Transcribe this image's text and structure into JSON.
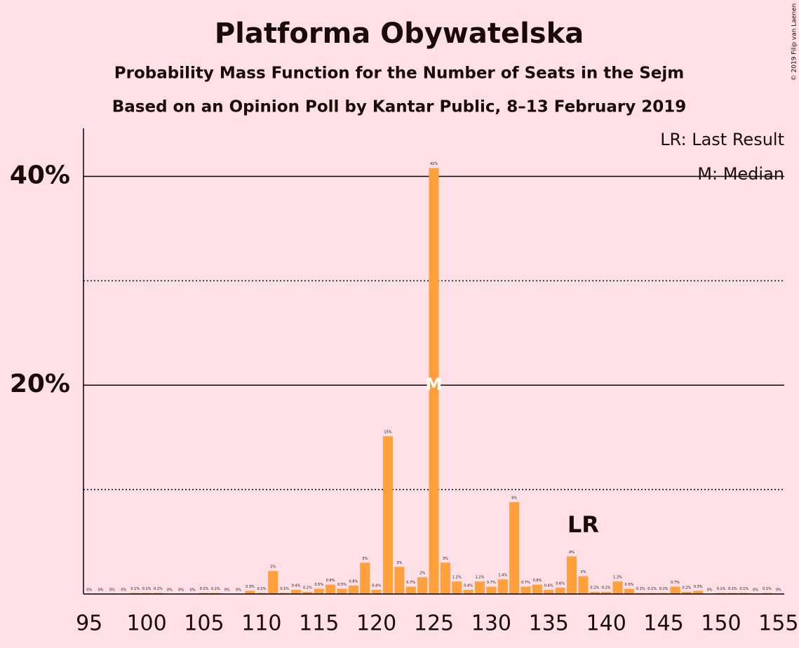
{
  "chart_data": {
    "type": "bar",
    "title": "Platforma Obywatelska",
    "subtitle": "Probability Mass Function for the Number of Seats in the Sejm",
    "subtitle2": "Based on an Opinion Poll by Kantar Public, 8–13 February 2019",
    "copyright": "© 2019 Filip van Laenen",
    "color": "#ffa03d",
    "x": [
      95,
      96,
      97,
      98,
      99,
      100,
      101,
      102,
      103,
      104,
      105,
      106,
      107,
      108,
      109,
      110,
      111,
      112,
      113,
      114,
      115,
      116,
      117,
      118,
      119,
      120,
      121,
      122,
      123,
      124,
      125,
      126,
      127,
      128,
      129,
      130,
      131,
      132,
      133,
      134,
      135,
      136,
      137,
      138,
      139,
      140,
      141,
      142,
      143,
      144,
      145,
      146,
      147,
      148,
      149,
      150,
      151,
      152,
      153,
      154,
      155
    ],
    "values": [
      0,
      0,
      0,
      0,
      0.1,
      0.1,
      0.1,
      0,
      0,
      0,
      0.1,
      0.1,
      0,
      0,
      0.3,
      0.1,
      2.2,
      0.1,
      0.4,
      0.2,
      0.5,
      0.9,
      0.5,
      0.8,
      3.0,
      0.4,
      15.1,
      2.6,
      0.7,
      1.6,
      40.8,
      3.0,
      1.2,
      0.4,
      1.2,
      0.7,
      1.4,
      8.8,
      0.7,
      0.9,
      0.4,
      0.6,
      3.6,
      1.7,
      0.2,
      0.2,
      1.2,
      0.5,
      0.1,
      0.1,
      0.1,
      0.7,
      0.2,
      0.3,
      0,
      0.1,
      0.1,
      0.1,
      0,
      0.1,
      0
    ],
    "value_labels": [
      "0%",
      "0%",
      "0%",
      "0%",
      "0.1%",
      "0.1%",
      "0.1%",
      "0%",
      "0%",
      "0%",
      "0.1%",
      "0.1%",
      "0%",
      "0%",
      "0.3%",
      "0.1%",
      "2%",
      "0.1%",
      "0.4%",
      "0.2%",
      "0.5%",
      "0.9%",
      "0.5%",
      "0.8%",
      "3%",
      "0.4%",
      "15%",
      "3%",
      "0.7%",
      "2%",
      "41%",
      "3%",
      "1.2%",
      "0.4%",
      "1.2%",
      "0.7%",
      "1.4%",
      "9%",
      "0.7%",
      "0.9%",
      "0.4%",
      "0.6%",
      "4%",
      "2%",
      "0.2%",
      "0.2%",
      "1.2%",
      "0.5%",
      "0.1%",
      "0.1%",
      "0.1%",
      "0.7%",
      "0.2%",
      "0.3%",
      "0%",
      "0.1%",
      "0.1%",
      "0.1%",
      "0%",
      "0.1%",
      "0%"
    ],
    "xlim": [
      94.5,
      155.5
    ],
    "xticks": [
      95,
      100,
      105,
      110,
      115,
      120,
      125,
      130,
      135,
      140,
      145,
      150,
      155
    ],
    "ylim": [
      0,
      44.6
    ],
    "yticks": [
      {
        "value": 20,
        "label": "20%"
      },
      {
        "value": 40,
        "label": "40%"
      }
    ],
    "minor_gridlines": [
      10,
      30
    ],
    "last_result": {
      "x": 138,
      "label": "LR"
    },
    "median": {
      "x": 125,
      "y": 20,
      "label": "M"
    },
    "legend": [
      "LR: Last Result",
      "M: Median"
    ]
  }
}
